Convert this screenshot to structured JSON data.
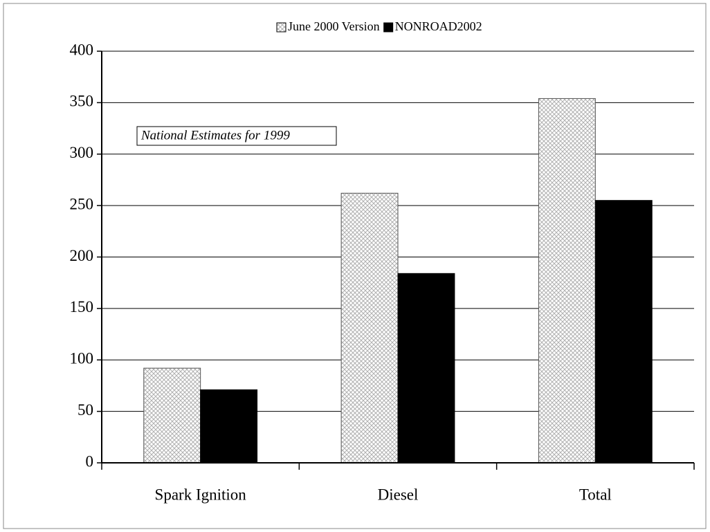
{
  "chart_data": {
    "type": "bar",
    "annotation": "National Estimates for 1999",
    "categories": [
      "Spark Ignition",
      "Diesel",
      "Total"
    ],
    "series": [
      {
        "name": "June 2000 Version",
        "color": "#b0b0b0",
        "pattern": "crosshatch",
        "values": [
          92,
          262,
          354
        ]
      },
      {
        "name": "NONROAD2002",
        "color": "#000000",
        "values": [
          71,
          184,
          255
        ]
      }
    ],
    "ylim": [
      0,
      400
    ],
    "yticks": [
      0,
      50,
      100,
      150,
      200,
      250,
      300,
      350,
      400
    ],
    "grid": true
  }
}
